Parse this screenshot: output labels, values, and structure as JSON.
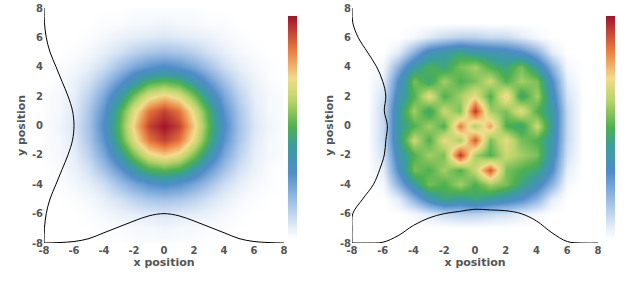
{
  "chart_data": [
    {
      "type": "heatmap",
      "xlabel": "x position",
      "ylabel": "y position",
      "xlim": [
        -8,
        8
      ],
      "ylim": [
        -8,
        8
      ],
      "xticks": [
        -8,
        -6,
        -4,
        -2,
        0,
        2,
        4,
        6,
        8
      ],
      "yticks": [
        -8,
        -6,
        -4,
        -2,
        0,
        2,
        4,
        6,
        8
      ],
      "color_range": [
        0,
        1
      ],
      "x": [
        -8,
        -7,
        -6,
        -5,
        -4,
        -3,
        -2,
        -1,
        0,
        1,
        2,
        3,
        4,
        5,
        6,
        7,
        8
      ],
      "y": [
        -8,
        -7,
        -6,
        -5,
        -4,
        -3,
        -2,
        -1,
        0,
        1,
        2,
        3,
        4,
        5,
        6,
        7,
        8
      ],
      "z": [
        [
          0,
          0,
          0,
          0,
          0,
          0,
          0.01,
          0.01,
          0.01,
          0.01,
          0.01,
          0,
          0,
          0,
          0,
          0,
          0
        ],
        [
          0,
          0,
          0,
          0,
          0.01,
          0.01,
          0.02,
          0.02,
          0.03,
          0.02,
          0.02,
          0.01,
          0.01,
          0,
          0,
          0,
          0
        ],
        [
          0,
          0,
          0,
          0.01,
          0.02,
          0.04,
          0.05,
          0.06,
          0.07,
          0.06,
          0.05,
          0.04,
          0.02,
          0.01,
          0,
          0,
          0
        ],
        [
          0,
          0,
          0.01,
          0.02,
          0.05,
          0.08,
          0.12,
          0.15,
          0.16,
          0.15,
          0.12,
          0.08,
          0.05,
          0.02,
          0.01,
          0,
          0
        ],
        [
          0,
          0.01,
          0.02,
          0.05,
          0.09,
          0.16,
          0.23,
          0.28,
          0.31,
          0.28,
          0.23,
          0.16,
          0.09,
          0.05,
          0.02,
          0.01,
          0
        ],
        [
          0,
          0.01,
          0.04,
          0.08,
          0.16,
          0.26,
          0.38,
          0.48,
          0.51,
          0.48,
          0.38,
          0.26,
          0.16,
          0.08,
          0.04,
          0.01,
          0
        ],
        [
          0.01,
          0.02,
          0.05,
          0.12,
          0.23,
          0.38,
          0.55,
          0.69,
          0.74,
          0.69,
          0.55,
          0.38,
          0.23,
          0.12,
          0.05,
          0.02,
          0.01
        ],
        [
          0.01,
          0.02,
          0.06,
          0.15,
          0.28,
          0.48,
          0.69,
          0.86,
          0.93,
          0.86,
          0.69,
          0.48,
          0.28,
          0.15,
          0.06,
          0.02,
          0.01
        ],
        [
          0.01,
          0.03,
          0.07,
          0.16,
          0.31,
          0.51,
          0.74,
          0.93,
          1.0,
          0.93,
          0.74,
          0.51,
          0.31,
          0.16,
          0.07,
          0.03,
          0.01
        ],
        [
          0.01,
          0.02,
          0.06,
          0.15,
          0.28,
          0.48,
          0.69,
          0.86,
          0.93,
          0.86,
          0.69,
          0.48,
          0.28,
          0.15,
          0.06,
          0.02,
          0.01
        ],
        [
          0.01,
          0.02,
          0.05,
          0.12,
          0.23,
          0.38,
          0.55,
          0.69,
          0.74,
          0.69,
          0.55,
          0.38,
          0.23,
          0.12,
          0.05,
          0.02,
          0.01
        ],
        [
          0,
          0.01,
          0.04,
          0.08,
          0.16,
          0.26,
          0.38,
          0.48,
          0.51,
          0.48,
          0.38,
          0.26,
          0.16,
          0.08,
          0.04,
          0.01,
          0
        ],
        [
          0,
          0.01,
          0.02,
          0.05,
          0.09,
          0.16,
          0.23,
          0.28,
          0.31,
          0.28,
          0.23,
          0.16,
          0.09,
          0.05,
          0.02,
          0.01,
          0
        ],
        [
          0,
          0,
          0.01,
          0.02,
          0.05,
          0.08,
          0.12,
          0.15,
          0.16,
          0.15,
          0.12,
          0.08,
          0.05,
          0.02,
          0.01,
          0,
          0
        ],
        [
          0,
          0,
          0,
          0.01,
          0.02,
          0.04,
          0.05,
          0.06,
          0.07,
          0.06,
          0.05,
          0.04,
          0.02,
          0.01,
          0,
          0,
          0
        ],
        [
          0,
          0,
          0,
          0,
          0.01,
          0.01,
          0.02,
          0.02,
          0.03,
          0.02,
          0.02,
          0.01,
          0.01,
          0,
          0,
          0,
          0
        ],
        [
          0,
          0,
          0,
          0,
          0,
          0,
          0.01,
          0.01,
          0.01,
          0.01,
          0.01,
          0,
          0,
          0,
          0,
          0,
          0
        ]
      ],
      "x_profile": {
        "x": [
          -8,
          -7,
          -6,
          -5,
          -4,
          -3,
          -2,
          -1,
          0,
          1,
          2,
          3,
          4,
          5,
          6,
          7,
          8
        ],
        "y": [
          -8,
          -7.97,
          -7.9,
          -7.7,
          -7.3,
          -6.9,
          -6.5,
          -6.15,
          -6.0,
          -6.15,
          -6.5,
          -6.9,
          -7.3,
          -7.7,
          -7.9,
          -7.97,
          -8
        ]
      },
      "y_profile": {
        "x": [
          -8,
          -7.97,
          -7.85,
          -7.6,
          -7.2,
          -6.8,
          -6.4,
          -6.1,
          -6.0,
          -6.1,
          -6.4,
          -6.8,
          -7.2,
          -7.6,
          -7.85,
          -7.97,
          -8
        ],
        "y": [
          -8,
          -7,
          -6,
          -5,
          -4,
          -3,
          -2,
          -1,
          0,
          1,
          2,
          3,
          4,
          5,
          6,
          7,
          8
        ]
      }
    },
    {
      "type": "heatmap",
      "xlabel": "x position",
      "ylabel": "y position",
      "xlim": [
        -8,
        8
      ],
      "ylim": [
        -8,
        8
      ],
      "xticks": [
        -8,
        -6,
        -4,
        -2,
        0,
        2,
        4,
        6,
        8
      ],
      "yticks": [
        -8,
        -6,
        -4,
        -2,
        0,
        2,
        4,
        6,
        8
      ],
      "color_range": [
        0,
        1
      ],
      "x": [
        -8,
        -7,
        -6,
        -5,
        -4,
        -3,
        -2,
        -1,
        0,
        1,
        2,
        3,
        4,
        5,
        6,
        7,
        8
      ],
      "y": [
        -8,
        -7,
        -6,
        -5,
        -4,
        -3,
        -2,
        -1,
        0,
        1,
        2,
        3,
        4,
        5,
        6,
        7,
        8
      ],
      "z": [
        [
          0,
          0,
          0,
          0,
          0,
          0,
          0,
          0,
          0,
          0,
          0,
          0,
          0,
          0,
          0,
          0,
          0
        ],
        [
          0,
          0,
          0,
          0,
          0,
          0,
          0,
          0,
          0,
          0,
          0,
          0,
          0,
          0,
          0,
          0,
          0
        ],
        [
          0,
          0,
          0,
          0,
          0.02,
          0.06,
          0.1,
          0.12,
          0.12,
          0.1,
          0.08,
          0.05,
          0.02,
          0,
          0,
          0,
          0
        ],
        [
          0,
          0,
          0,
          0.05,
          0.2,
          0.35,
          0.45,
          0.4,
          0.45,
          0.4,
          0.35,
          0.3,
          0.2,
          0.05,
          0,
          0,
          0
        ],
        [
          0,
          0,
          0.02,
          0.2,
          0.4,
          0.55,
          0.5,
          0.6,
          0.5,
          0.6,
          0.55,
          0.45,
          0.35,
          0.2,
          0.02,
          0,
          0
        ],
        [
          0,
          0,
          0.05,
          0.3,
          0.55,
          0.5,
          0.6,
          0.5,
          0.65,
          0.9,
          0.55,
          0.5,
          0.45,
          0.3,
          0.05,
          0,
          0
        ],
        [
          0,
          0,
          0.08,
          0.35,
          0.5,
          0.6,
          0.55,
          0.95,
          0.6,
          0.5,
          0.65,
          0.6,
          0.55,
          0.35,
          0.08,
          0,
          0
        ],
        [
          0,
          0,
          0.1,
          0.4,
          0.65,
          0.5,
          0.7,
          0.6,
          0.9,
          0.55,
          0.7,
          0.55,
          0.5,
          0.38,
          0.1,
          0,
          0
        ],
        [
          0,
          0,
          0.1,
          0.4,
          0.5,
          0.6,
          0.5,
          0.85,
          0.6,
          0.8,
          0.5,
          0.45,
          0.65,
          0.4,
          0.1,
          0,
          0
        ],
        [
          0,
          0,
          0.1,
          0.4,
          0.6,
          0.45,
          0.65,
          0.55,
          0.95,
          0.6,
          0.55,
          0.7,
          0.5,
          0.4,
          0.1,
          0,
          0
        ],
        [
          0,
          0,
          0.08,
          0.35,
          0.5,
          0.7,
          0.5,
          0.6,
          0.7,
          0.5,
          0.75,
          0.45,
          0.6,
          0.35,
          0.08,
          0,
          0
        ],
        [
          0,
          0,
          0.05,
          0.3,
          0.55,
          0.45,
          0.6,
          0.5,
          0.55,
          0.65,
          0.5,
          0.6,
          0.55,
          0.3,
          0.05,
          0,
          0
        ],
        [
          0,
          0,
          0.02,
          0.2,
          0.4,
          0.5,
          0.45,
          0.55,
          0.6,
          0.5,
          0.45,
          0.55,
          0.4,
          0.2,
          0.02,
          0,
          0
        ],
        [
          0,
          0,
          0,
          0.05,
          0.2,
          0.35,
          0.4,
          0.45,
          0.4,
          0.38,
          0.35,
          0.3,
          0.2,
          0.05,
          0,
          0,
          0
        ],
        [
          0,
          0,
          0,
          0,
          0.02,
          0.06,
          0.1,
          0.12,
          0.12,
          0.1,
          0.1,
          0.06,
          0.02,
          0,
          0,
          0,
          0
        ],
        [
          0,
          0,
          0,
          0,
          0,
          0,
          0,
          0,
          0,
          0,
          0,
          0,
          0,
          0,
          0,
          0,
          0
        ],
        [
          0,
          0,
          0,
          0,
          0,
          0,
          0,
          0,
          0,
          0,
          0,
          0,
          0,
          0,
          0,
          0,
          0
        ]
      ],
      "x_profile": {
        "x": [
          -8,
          -7,
          -6,
          -5,
          -4,
          -3,
          -2,
          -1,
          0,
          1,
          2,
          3,
          4,
          5,
          6,
          7,
          8
        ],
        "y": [
          -8,
          -8,
          -7.95,
          -7.5,
          -6.8,
          -6.3,
          -6.0,
          -5.85,
          -5.7,
          -5.75,
          -5.8,
          -6.0,
          -6.5,
          -7.3,
          -7.9,
          -8,
          -8
        ]
      },
      "y_profile": {
        "x": [
          -8,
          -8,
          -7.95,
          -7.3,
          -6.6,
          -6.2,
          -5.9,
          -5.8,
          -5.7,
          -5.9,
          -5.8,
          -6.0,
          -6.4,
          -7.0,
          -7.6,
          -7.95,
          -8
        ],
        "y": [
          -8,
          -7,
          -6,
          -5,
          -4,
          -3,
          -2,
          -1,
          0,
          1,
          2,
          3,
          4,
          5,
          6,
          7,
          8
        ]
      }
    }
  ]
}
